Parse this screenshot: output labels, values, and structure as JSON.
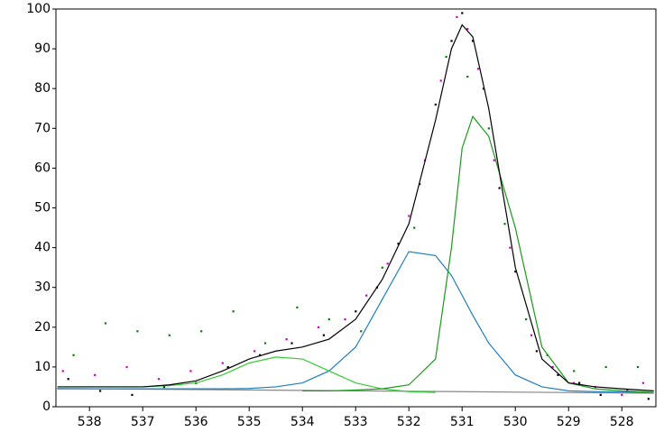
{
  "chart_data": {
    "type": "line",
    "xlim": [
      538.63,
      527.36
    ],
    "ylim": [
      0,
      100
    ],
    "xticks": [
      538,
      537,
      536,
      535,
      534,
      533,
      532,
      531,
      530,
      529,
      528
    ],
    "yticks": [
      0,
      10,
      20,
      30,
      40,
      50,
      60,
      70,
      80,
      90,
      100
    ],
    "series": [
      {
        "mode": "markers",
        "color": "#cc00cc",
        "x": [
          538.5,
          537.9,
          537.3,
          536.7,
          536.1,
          535.5,
          534.9,
          534.3,
          533.7,
          533.2,
          532.8,
          532.4,
          532,
          531.7,
          531.4,
          531.1,
          530.9,
          530.7,
          530.4,
          530.1,
          529.7,
          529.3,
          528.9,
          528.5,
          528,
          527.6
        ],
        "values": [
          9,
          8,
          10,
          7,
          9,
          11,
          14,
          17,
          20,
          22,
          28,
          36,
          48,
          62,
          82,
          98,
          95,
          85,
          62,
          40,
          18,
          10,
          6,
          5,
          3,
          6
        ]
      },
      {
        "mode": "markers",
        "color": "#000000",
        "x": [
          538.4,
          537.8,
          537.2,
          536.6,
          536,
          535.4,
          534.8,
          534.2,
          533.6,
          533,
          532.6,
          532.2,
          531.8,
          531.5,
          531.2,
          531,
          530.8,
          530.6,
          530.3,
          530,
          529.6,
          529.2,
          528.8,
          528.4,
          527.9,
          527.5
        ],
        "values": [
          7,
          4,
          3,
          5,
          6,
          10,
          13,
          16,
          18,
          24,
          30,
          41,
          56,
          76,
          92,
          99,
          92,
          80,
          55,
          34,
          14,
          8,
          6,
          3,
          4,
          2
        ]
      },
      {
        "mode": "markers",
        "color": "#008000",
        "x": [
          538.3,
          537.7,
          537.1,
          536.5,
          535.9,
          535.3,
          534.7,
          534.1,
          533.5,
          532.9,
          532.5,
          531.9,
          531.3,
          530.9,
          530.5,
          530.2,
          529.8,
          529.4,
          528.9,
          528.3,
          527.7
        ],
        "values": [
          13,
          21,
          19,
          18,
          19,
          24,
          16,
          25,
          22,
          19,
          35,
          45,
          88,
          83,
          70,
          46,
          22,
          13,
          9,
          10,
          10
        ]
      },
      {
        "mode": "lines",
        "color": "#888888",
        "x": [
          538.63,
          527.4
        ],
        "values": [
          4.6,
          3.4
        ]
      },
      {
        "mode": "lines",
        "color": "#1f7fbf",
        "x": [
          538.6,
          538,
          537.5,
          537,
          536.5,
          536,
          535.5,
          535,
          534.5,
          534,
          533.5,
          533,
          532.5,
          532,
          531.5,
          531.2,
          531,
          530.8,
          530.5,
          530,
          529.5,
          529,
          528.5,
          528,
          527.4
        ],
        "values": [
          4.5,
          4.5,
          4.5,
          4.5,
          4.5,
          4.5,
          4.5,
          4.6,
          5,
          6,
          9,
          15,
          27,
          39,
          38,
          33,
          28,
          23,
          16,
          8,
          5,
          4,
          3.8,
          3.7,
          3.6
        ]
      },
      {
        "mode": "lines",
        "color": "#33cc33",
        "x": [
          538.6,
          538,
          537.5,
          537,
          536.5,
          536,
          535.5,
          535,
          534.5,
          534,
          533.5,
          533,
          532.5,
          532,
          531.5
        ],
        "values": [
          5,
          5,
          5,
          5,
          5.3,
          6,
          8,
          11,
          12.5,
          12,
          9,
          6,
          4.5,
          3.8,
          3.6
        ]
      },
      {
        "mode": "lines",
        "color": "#1a9a1a",
        "x": [
          534,
          533.5,
          533,
          532.5,
          532,
          531.5,
          531.2,
          531,
          530.8,
          530.5,
          530,
          529.5,
          529,
          528.5,
          528,
          527.4
        ],
        "values": [
          4,
          4,
          4.2,
          4.5,
          5.5,
          12,
          40,
          65,
          73,
          68,
          45,
          15,
          6,
          4.5,
          4,
          3.6
        ]
      },
      {
        "mode": "lines",
        "color": "#000000",
        "x": [
          538.6,
          538,
          537.5,
          537,
          536.5,
          536,
          535.5,
          535,
          534.5,
          534,
          533.5,
          533,
          532.5,
          532,
          531.5,
          531.2,
          531,
          530.8,
          530.5,
          530,
          529.5,
          529,
          528.5,
          528,
          527.4
        ],
        "values": [
          5,
          5,
          5,
          5,
          5.5,
          6.5,
          9,
          12,
          14,
          15,
          17,
          22,
          32,
          46,
          72,
          90,
          96,
          93,
          75,
          35,
          12,
          6,
          5,
          4.5,
          4
        ]
      }
    ]
  }
}
